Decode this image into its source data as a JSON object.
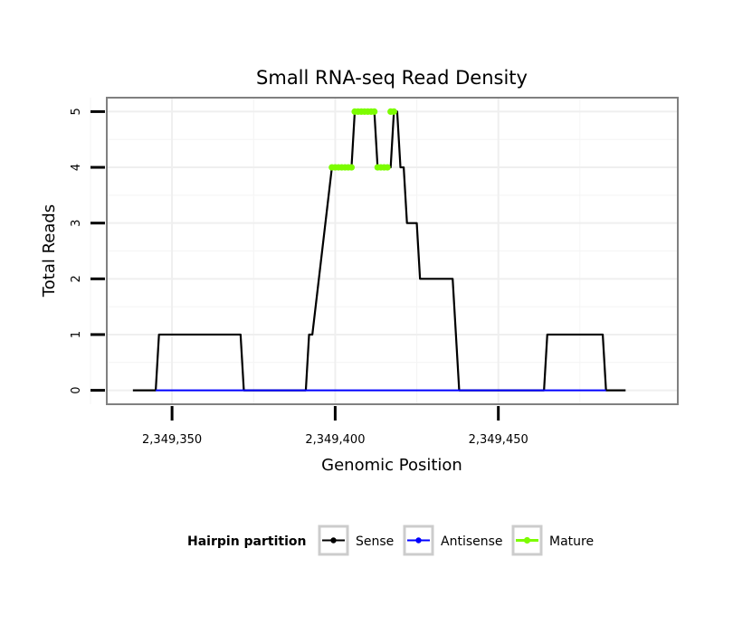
{
  "chart_data": {
    "type": "line",
    "title": "Small RNA-seq Read Density",
    "xlabel": "Genomic Position",
    "ylabel": "Total Reads",
    "xlim": [
      2349330,
      2349505
    ],
    "ylim": [
      -0.25,
      5.25
    ],
    "x_ticks": [
      2349350,
      2349400,
      2349450
    ],
    "x_tick_labels": [
      "2,349,350",
      "2,349,400",
      "2,349,450"
    ],
    "y_ticks": [
      0,
      1,
      2,
      3,
      4,
      5
    ],
    "y_tick_labels": [
      "0",
      "1",
      "2",
      "3",
      "4",
      "5"
    ],
    "grid": true,
    "legend": {
      "title": "Hairpin partition",
      "position": "bottom",
      "entries": [
        "Sense",
        "Antisense",
        "Mature"
      ]
    },
    "colors": {
      "Sense": "#000000",
      "Antisense": "#0000ff",
      "Mature": "#7cfc00"
    },
    "series": [
      {
        "name": "Sense",
        "x": [
          2349338,
          2349345,
          2349346,
          2349371,
          2349372,
          2349391,
          2349392,
          2349393,
          2349399,
          2349405,
          2349406,
          2349412,
          2349413,
          2349417,
          2349418,
          2349419,
          2349420,
          2349421,
          2349422,
          2349425,
          2349426,
          2349436,
          2349437,
          2349438,
          2349464,
          2349465,
          2349482,
          2349483,
          2349489
        ],
        "y": [
          0,
          0,
          1,
          1,
          0,
          0,
          1,
          1,
          4,
          4,
          5,
          5,
          4,
          4,
          5,
          5,
          4,
          4,
          3,
          3,
          2,
          2,
          1,
          0,
          0,
          1,
          1,
          0,
          0
        ]
      },
      {
        "name": "Antisense",
        "x": [
          2349345,
          2349483
        ],
        "y": [
          0,
          0
        ]
      },
      {
        "name": "Mature",
        "x": [
          2349399,
          2349400,
          2349401,
          2349402,
          2349403,
          2349404,
          2349405,
          2349406,
          2349407,
          2349408,
          2349409,
          2349410,
          2349411,
          2349412,
          2349413,
          2349414,
          2349415,
          2349416,
          2349417,
          2349418
        ],
        "y": [
          4,
          4,
          4,
          4,
          4,
          4,
          4,
          5,
          5,
          5,
          5,
          5,
          5,
          5,
          4,
          4,
          4,
          4,
          5,
          5
        ]
      }
    ]
  }
}
